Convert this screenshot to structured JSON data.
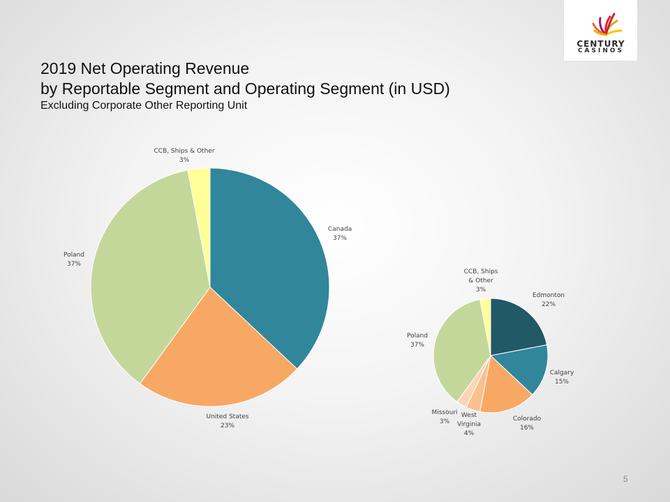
{
  "logo": {
    "line1": "CENTURY",
    "line2": "CASINOS"
  },
  "slide": {
    "title_line1": "2019 Net Operating Revenue",
    "title_line2": "by Reportable Segment and Operating Segment (in USD)",
    "subtitle": "Excluding Corporate Other Reporting Unit",
    "page_number": "5"
  },
  "chart_data": [
    {
      "type": "pie",
      "categories": [
        "Canada",
        "United States",
        "Poland",
        "CCB, Ships & Other"
      ],
      "values": [
        37,
        23,
        37,
        3
      ],
      "data_labels": [
        "37%",
        "23%",
        "37%",
        "3%"
      ],
      "colors": [
        "#31869b",
        "#f8a865",
        "#c4d79b",
        "#ffff99"
      ]
    },
    {
      "type": "pie",
      "categories": [
        "Edmonton",
        "Calgary",
        "Colorado",
        "West Virginia",
        "Missouri",
        "Poland",
        "CCB, Ships & Other"
      ],
      "values": [
        22,
        15,
        16,
        4,
        3,
        37,
        3
      ],
      "data_labels": [
        "22%",
        "15%",
        "16%",
        "4%",
        "3%",
        "37%",
        "3%"
      ],
      "colors": [
        "#215967",
        "#31869b",
        "#f8a865",
        "#fac090",
        "#fcd5b4",
        "#c4d79b",
        "#ffff99"
      ]
    }
  ]
}
